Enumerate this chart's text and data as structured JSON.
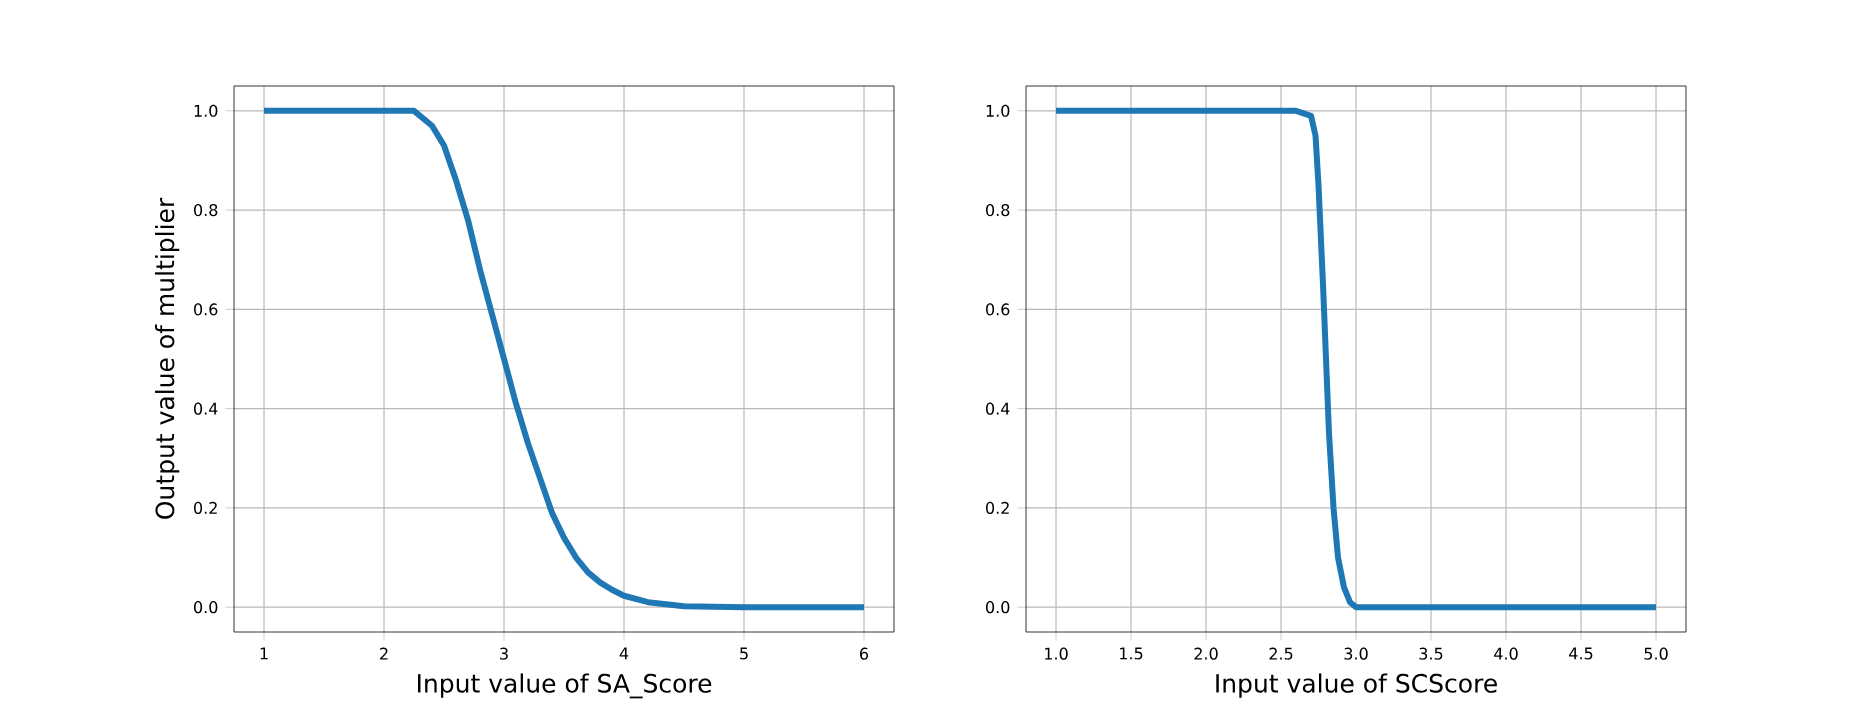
{
  "chart_data": [
    {
      "type": "line",
      "xlabel": "Input value of SA_Score",
      "ylabel": "Output value of multiplier",
      "grid": true,
      "line_style": "solid",
      "xlim": [
        0.75,
        6.25
      ],
      "ylim": [
        -0.05,
        1.05
      ],
      "xticks": [
        1,
        2,
        3,
        4,
        5,
        6
      ],
      "yticks": [
        {
          "value": 0,
          "label": "0.0"
        },
        {
          "value": 0.2,
          "label": "0.2"
        },
        {
          "value": 0.4,
          "label": "0.4"
        },
        {
          "value": 0.6,
          "label": "0.6"
        },
        {
          "value": 0.8,
          "label": "0.8"
        },
        {
          "value": 1,
          "label": "1.0"
        }
      ],
      "x": [
        1,
        1.5,
        2,
        2.25,
        2.4,
        2.5,
        2.6,
        2.7,
        2.8,
        2.9,
        3.0,
        3.1,
        3.2,
        3.3,
        3.4,
        3.5,
        3.6,
        3.7,
        3.8,
        3.9,
        4.0,
        4.2,
        4.5,
        5,
        6
      ],
      "series": [
        {
          "color": "#1f77b4",
          "values": [
            1,
            1,
            1,
            1,
            0.97,
            0.93,
            0.86,
            0.78,
            0.68,
            0.59,
            0.5,
            0.41,
            0.33,
            0.26,
            0.19,
            0.14,
            0.1,
            0.07,
            0.05,
            0.035,
            0.023,
            0.01,
            0.002,
            0,
            0
          ]
        }
      ]
    },
    {
      "type": "line",
      "xlabel": "Input value of SCScore",
      "grid": true,
      "line_style": "solid",
      "xlim": [
        0.8,
        5.2
      ],
      "ylim": [
        -0.05,
        1.05
      ],
      "xticks": [
        {
          "value": 1,
          "label": "1.0"
        },
        {
          "value": 1.5,
          "label": "1.5"
        },
        {
          "value": 2,
          "label": "2.0"
        },
        {
          "value": 2.5,
          "label": "2.5"
        },
        {
          "value": 3,
          "label": "3.0"
        },
        {
          "value": 3.5,
          "label": "3.5"
        },
        {
          "value": 4,
          "label": "4.0"
        },
        {
          "value": 4.5,
          "label": "4.5"
        },
        {
          "value": 5,
          "label": "5.0"
        }
      ],
      "yticks": [
        {
          "value": 0,
          "label": "0.0"
        },
        {
          "value": 0.2,
          "label": "0.2"
        },
        {
          "value": 0.4,
          "label": "0.4"
        },
        {
          "value": 0.6,
          "label": "0.6"
        },
        {
          "value": 0.8,
          "label": "0.8"
        },
        {
          "value": 1,
          "label": "1.0"
        }
      ],
      "x": [
        1,
        2,
        2.6,
        2.7,
        2.73,
        2.75,
        2.78,
        2.8,
        2.82,
        2.85,
        2.88,
        2.92,
        2.96,
        3.0,
        4,
        5
      ],
      "series": [
        {
          "color": "#1f77b4",
          "values": [
            1,
            1,
            1,
            0.99,
            0.95,
            0.85,
            0.65,
            0.5,
            0.35,
            0.2,
            0.1,
            0.04,
            0.01,
            0,
            0,
            0
          ]
        }
      ]
    }
  ]
}
